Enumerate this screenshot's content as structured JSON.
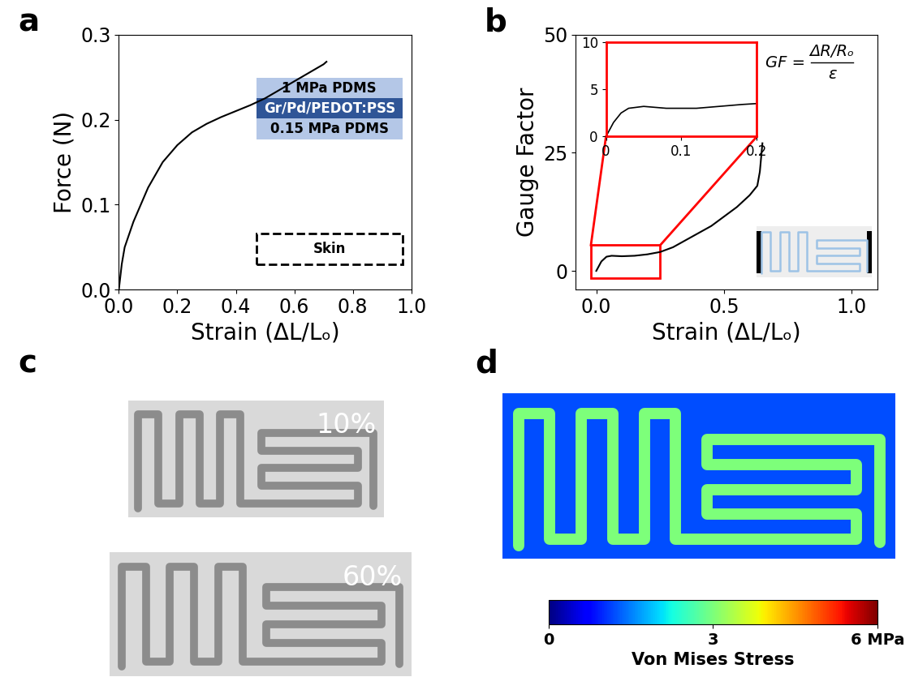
{
  "panel_labels": [
    "a",
    "b",
    "c",
    "d"
  ],
  "chart_data": [
    {
      "type": "line",
      "x_label": "Strain (ΔL/Lₒ)",
      "y_label": "Force (N)",
      "color": "#000000",
      "x": [
        0,
        0.01,
        0.02,
        0.05,
        0.1,
        0.15,
        0.2,
        0.25,
        0.3,
        0.35,
        0.4,
        0.45,
        0.5,
        0.55,
        0.6,
        0.65,
        0.7,
        0.71
      ],
      "values": [
        0,
        0.03,
        0.05,
        0.08,
        0.12,
        0.15,
        0.17,
        0.185,
        0.195,
        0.203,
        0.21,
        0.217,
        0.225,
        0.235,
        0.245,
        0.255,
        0.265,
        0.268
      ],
      "xlim": [
        0,
        1.0
      ],
      "ylim": [
        0,
        0.3
      ],
      "xticks": [
        {
          "value": 0,
          "label": "0.0"
        },
        {
          "value": 0.2,
          "label": "0.2"
        },
        {
          "value": 0.4,
          "label": "0.4"
        },
        {
          "value": 0.6,
          "label": "0.6"
        },
        {
          "value": 0.8,
          "label": "0.8"
        },
        {
          "value": 1,
          "label": "1.0"
        }
      ],
      "yticks": [
        {
          "value": 0,
          "label": "0.0"
        },
        {
          "value": 0.1,
          "label": "0.1"
        },
        {
          "value": 0.2,
          "label": "0.2"
        },
        {
          "value": 0.3,
          "label": "0.3"
        }
      ],
      "layers": [
        "1 MPa PDMS",
        "Gr/Pd/PEDOT:PSS",
        "0.15 MPa PDMS"
      ],
      "substrate_label": "Skin"
    },
    {
      "type": "line",
      "x_label": "Strain (ΔL/Lₒ)",
      "y_label": "Gauge Factor",
      "color": "#000000",
      "x": [
        0,
        0.02,
        0.04,
        0.06,
        0.1,
        0.15,
        0.2,
        0.25,
        0.3,
        0.35,
        0.4,
        0.45,
        0.5,
        0.55,
        0.6,
        0.63,
        0.64,
        0.65
      ],
      "values": [
        0,
        2,
        3,
        3.2,
        3.1,
        3.2,
        3.5,
        4,
        5,
        6.5,
        8,
        9.5,
        11.5,
        13.5,
        16,
        18,
        21,
        27
      ],
      "xlim": [
        -0.08,
        1.1
      ],
      "ylim": [
        -4,
        50
      ],
      "xticks": [
        {
          "value": 0,
          "label": "0.0"
        },
        {
          "value": 0.5,
          "label": "0.5"
        },
        {
          "value": 1,
          "label": "1.0"
        }
      ],
      "yticks": [
        0,
        25,
        50
      ],
      "formula": {
        "lhs": "GF =",
        "numerator": "ΔR/Rₒ",
        "denominator": "ε"
      },
      "inset": {
        "type": "line",
        "color": "#000000",
        "x": [
          0,
          0.01,
          0.02,
          0.03,
          0.05,
          0.08,
          0.1,
          0.12,
          0.15,
          0.18,
          0.2
        ],
        "values": [
          0,
          1.5,
          2.5,
          3.0,
          3.2,
          3.0,
          3.0,
          3.0,
          3.2,
          3.4,
          3.5
        ],
        "xlim": [
          0,
          0.2
        ],
        "ylim": [
          0,
          10
        ],
        "xticks": [
          0,
          0.1,
          0.2
        ],
        "yticks": [
          0,
          5,
          10
        ]
      }
    }
  ],
  "photos": {
    "labels": [
      "10%",
      "60%"
    ]
  },
  "simulation": {
    "stress": {
      "substrate": 1.2,
      "trace": 3.0
    },
    "colorbar": {
      "range": [
        0,
        6
      ],
      "ticks": [
        0,
        3,
        {
          "value": 6,
          "label": "6 MPa"
        }
      ],
      "label": "Von Mises Stress"
    }
  }
}
